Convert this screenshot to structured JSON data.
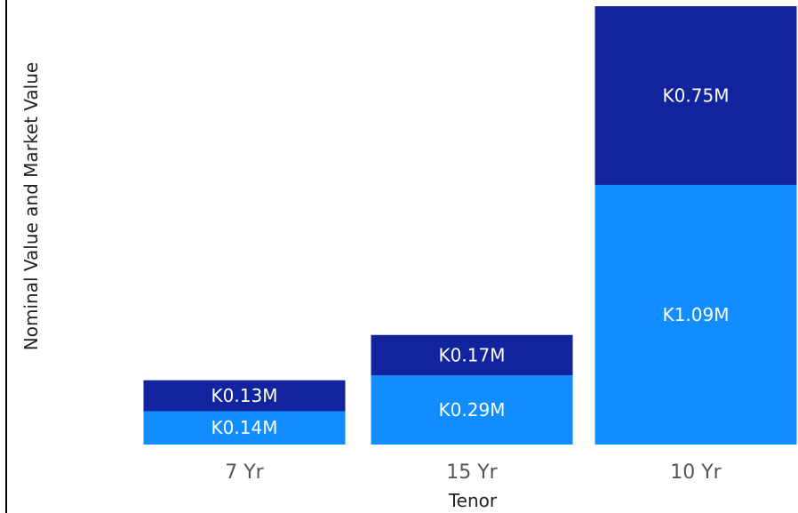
{
  "chart_data": {
    "type": "bar",
    "stacked": true,
    "categories": [
      "7 Yr",
      "15 Yr",
      "10 Yr"
    ],
    "series": [
      {
        "values": [
          0.14,
          0.29,
          1.09
        ],
        "labels": [
          "K0.14M",
          "K0.29M",
          "K1.09M"
        ],
        "color": "#118dff"
      },
      {
        "values": [
          0.13,
          0.17,
          0.75
        ],
        "labels": [
          "K0.13M",
          "K0.17M",
          "K0.75M"
        ],
        "color": "#12239e"
      }
    ],
    "xlabel": "Tenor",
    "ylabel": "Nominal Value and Market Value",
    "ylim": [
      0,
      1.84
    ],
    "grid": false
  }
}
